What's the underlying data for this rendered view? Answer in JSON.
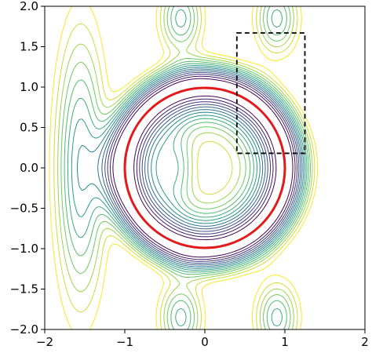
{
  "chart_data": {
    "type": "contour",
    "title": "",
    "xlabel": "",
    "ylabel": "",
    "xlim": [
      -2,
      2
    ],
    "ylim": [
      -2,
      2
    ],
    "grid": false,
    "x_ticks": [
      {
        "value": -2,
        "label": "−2"
      },
      {
        "value": -1,
        "label": "−1"
      },
      {
        "value": 0,
        "label": "0"
      },
      {
        "value": 1,
        "label": "1"
      },
      {
        "value": 2,
        "label": "2"
      }
    ],
    "y_ticks": [
      {
        "value": -2,
        "label": "−2.0"
      },
      {
        "value": -1.5,
        "label": "−1.5"
      },
      {
        "value": -1,
        "label": "−1.0"
      },
      {
        "value": -0.5,
        "label": "−0.5"
      },
      {
        "value": 0,
        "label": "0.0"
      },
      {
        "value": 0.5,
        "label": "0.5"
      },
      {
        "value": 1,
        "label": "1.0"
      },
      {
        "value": 1.5,
        "label": "1.5"
      },
      {
        "value": 2,
        "label": "2.0"
      }
    ],
    "contour_levels": 14,
    "colormap": [
      "#440154",
      "#3b528b",
      "#21918c",
      "#5ec962",
      "#fde725"
    ],
    "unit_circle": {
      "center": [
        0,
        0
      ],
      "radius": 1,
      "color": "#e31a1c"
    },
    "dashed_box": {
      "x": [
        0.4,
        1.25
      ],
      "y": [
        0.18,
        1.67
      ],
      "color": "#000000"
    }
  }
}
